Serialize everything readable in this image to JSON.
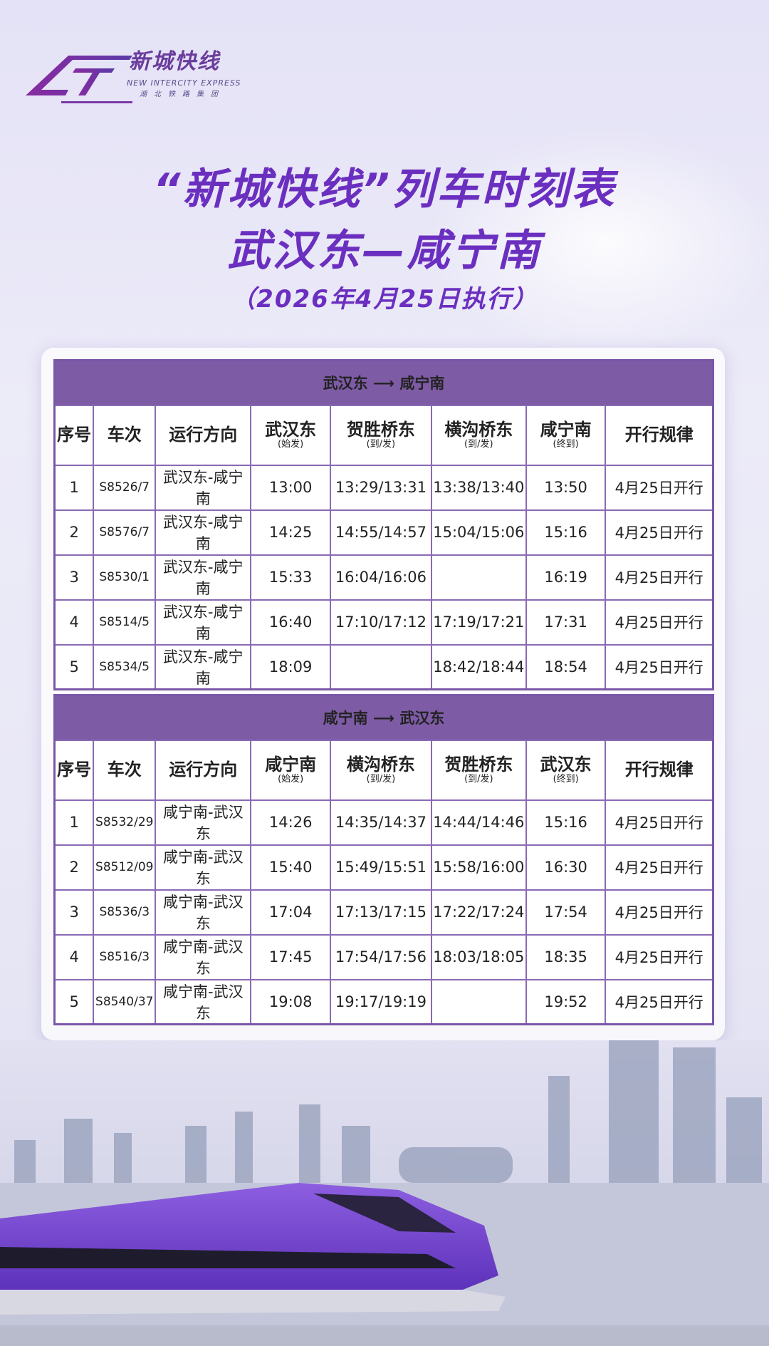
{
  "logo": {
    "cn": "新城快线",
    "en": "NEW INTERCITY EXPRESS",
    "sub": "湖北铁路集团"
  },
  "title": {
    "line1": "“新城快线”列车时刻表",
    "line2": "武汉东—咸宁南",
    "line3": "（2026年4月25日执行）"
  },
  "colors": {
    "accent": "#7e5ba5",
    "title": "#6b2fc0",
    "border": "#8a6ab5"
  },
  "tables": [
    {
      "heading": "武汉东 ⟶ 咸宁南",
      "columns": [
        {
          "main": "序号"
        },
        {
          "main": "车次"
        },
        {
          "main": "运行方向"
        },
        {
          "main": "武汉东",
          "sub": "(始发)"
        },
        {
          "main": "贺胜桥东",
          "sub": "(到/发)"
        },
        {
          "main": "横沟桥东",
          "sub": "(到/发)"
        },
        {
          "main": "咸宁南",
          "sub": "(终到)"
        },
        {
          "main": "开行规律"
        }
      ],
      "rows": [
        [
          "1",
          "S8526/7",
          "武汉东-咸宁南",
          "13:00",
          "13:29/13:31",
          "13:38/13:40",
          "13:50",
          "4月25日开行"
        ],
        [
          "2",
          "S8576/7",
          "武汉东-咸宁南",
          "14:25",
          "14:55/14:57",
          "15:04/15:06",
          "15:16",
          "4月25日开行"
        ],
        [
          "3",
          "S8530/1",
          "武汉东-咸宁南",
          "15:33",
          "16:04/16:06",
          "",
          "16:19",
          "4月25日开行"
        ],
        [
          "4",
          "S8514/5",
          "武汉东-咸宁南",
          "16:40",
          "17:10/17:12",
          "17:19/17:21",
          "17:31",
          "4月25日开行"
        ],
        [
          "5",
          "S8534/5",
          "武汉东-咸宁南",
          "18:09",
          "",
          "18:42/18:44",
          "18:54",
          "4月25日开行"
        ]
      ]
    },
    {
      "heading": "咸宁南 ⟶ 武汉东",
      "columns": [
        {
          "main": "序号"
        },
        {
          "main": "车次"
        },
        {
          "main": "运行方向"
        },
        {
          "main": "咸宁南",
          "sub": "(始发)"
        },
        {
          "main": "横沟桥东",
          "sub": "(到/发)"
        },
        {
          "main": "贺胜桥东",
          "sub": "(到/发)"
        },
        {
          "main": "武汉东",
          "sub": "(终到)"
        },
        {
          "main": "开行规律"
        }
      ],
      "rows": [
        [
          "1",
          "S8532/29",
          "咸宁南-武汉东",
          "14:26",
          "14:35/14:37",
          "14:44/14:46",
          "15:16",
          "4月25日开行"
        ],
        [
          "2",
          "S8512/09",
          "咸宁南-武汉东",
          "15:40",
          "15:49/15:51",
          "15:58/16:00",
          "16:30",
          "4月25日开行"
        ],
        [
          "3",
          "S8536/3",
          "咸宁南-武汉东",
          "17:04",
          "17:13/17:15",
          "17:22/17:24",
          "17:54",
          "4月25日开行"
        ],
        [
          "4",
          "S8516/3",
          "咸宁南-武汉东",
          "17:45",
          "17:54/17:56",
          "18:03/18:05",
          "18:35",
          "4月25日开行"
        ],
        [
          "5",
          "S8540/37",
          "咸宁南-武汉东",
          "19:08",
          "19:17/19:19",
          "",
          "19:52",
          "4月25日开行"
        ]
      ]
    }
  ]
}
